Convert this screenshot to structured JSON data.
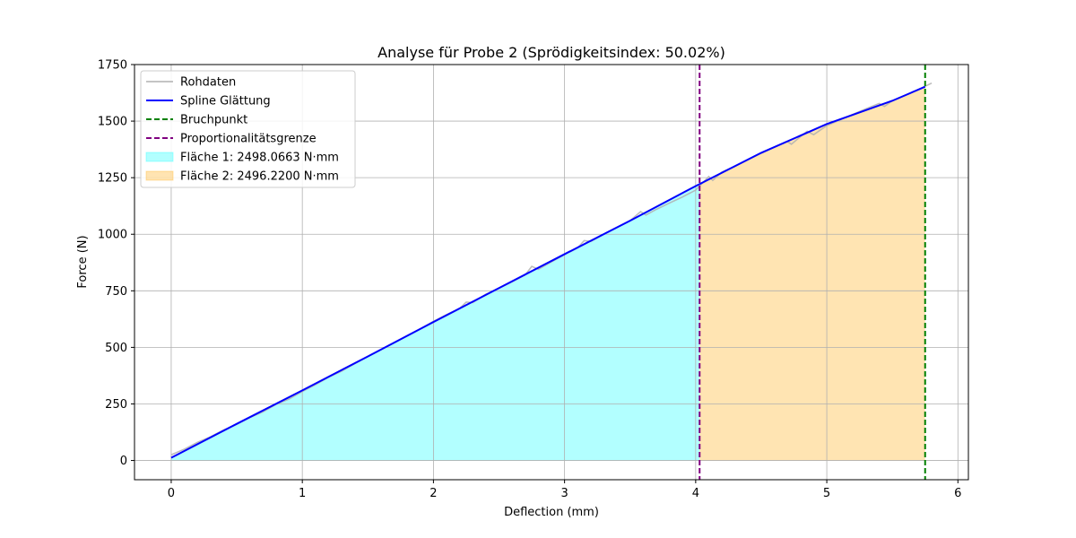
{
  "chart_data": {
    "type": "line",
    "title": "Analyse für Probe 2 (Sprödigkeitsindex: 50.02%)",
    "xlabel": "Deflection (mm)",
    "ylabel": "Force (N)",
    "xlim": [
      -0.28,
      6.08
    ],
    "ylim": [
      -85,
      1750
    ],
    "xticks": [
      0,
      1,
      2,
      3,
      4,
      5,
      6
    ],
    "yticks": [
      0,
      250,
      500,
      750,
      1000,
      1250,
      1500,
      1750
    ],
    "grid": true,
    "legend_position": "top-left",
    "series": [
      {
        "name": "Rohdaten",
        "kind": "line",
        "color": "#b0b0b0",
        "x": [
          0,
          0.1,
          0.2,
          0.3,
          0.4,
          0.5,
          0.6,
          0.7,
          0.8,
          0.9,
          1.0,
          1.1,
          1.2,
          1.3,
          1.4,
          1.5,
          1.6,
          1.7,
          1.8,
          1.9,
          2.0,
          2.1,
          2.2,
          2.25,
          2.3,
          2.4,
          2.5,
          2.6,
          2.7,
          2.75,
          2.8,
          2.9,
          3.0,
          3.1,
          3.15,
          3.2,
          3.3,
          3.4,
          3.5,
          3.58,
          3.62,
          3.7,
          3.8,
          3.9,
          4.0,
          4.05,
          4.1,
          4.13,
          4.2,
          4.3,
          4.4,
          4.5,
          4.6,
          4.7,
          4.73,
          4.8,
          4.85,
          4.9,
          5.0,
          5.1,
          5.2,
          5.3,
          5.4,
          5.44,
          5.5,
          5.6,
          5.65,
          5.7,
          5.8
        ],
        "y": [
          25,
          50,
          80,
          105,
          135,
          160,
          190,
          215,
          248,
          272,
          305,
          335,
          368,
          395,
          428,
          460,
          490,
          520,
          552,
          582,
          615,
          645,
          672,
          700,
          698,
          735,
          762,
          790,
          820,
          858,
          845,
          878,
          910,
          940,
          972,
          968,
          1000,
          1030,
          1060,
          1100,
          1085,
          1110,
          1138,
          1165,
          1195,
          1225,
          1255,
          1238,
          1275,
          1300,
          1330,
          1358,
          1385,
          1410,
          1398,
          1432,
          1455,
          1440,
          1480,
          1505,
          1530,
          1555,
          1578,
          1565,
          1590,
          1615,
          1628,
          1640,
          1668
        ]
      },
      {
        "name": "Spline Glättung",
        "kind": "line",
        "color": "#0000ff",
        "x": [
          0,
          0.5,
          1.0,
          1.5,
          2.0,
          2.5,
          3.0,
          3.5,
          4.0,
          4.5,
          5.0,
          5.5,
          5.75
        ],
        "y": [
          12,
          162,
          310,
          460,
          612,
          762,
          912,
          1060,
          1213,
          1360,
          1487,
          1590,
          1652
        ]
      },
      {
        "name": "Bruchpunkt",
        "kind": "vline",
        "color": "#008000",
        "x": 5.75
      },
      {
        "name": "Proportionalitätsgrenze",
        "kind": "vline",
        "color": "#800080",
        "x": 4.03
      },
      {
        "name": "Fläche 1: 2498.0663 N·mm",
        "kind": "area",
        "color": "#00ffff",
        "x_from": 0,
        "x_to": 4.03
      },
      {
        "name": "Fläche 2: 2496.2200 N·mm",
        "kind": "area",
        "color": "#ffa500",
        "x_from": 4.03,
        "x_to": 5.75
      }
    ]
  }
}
